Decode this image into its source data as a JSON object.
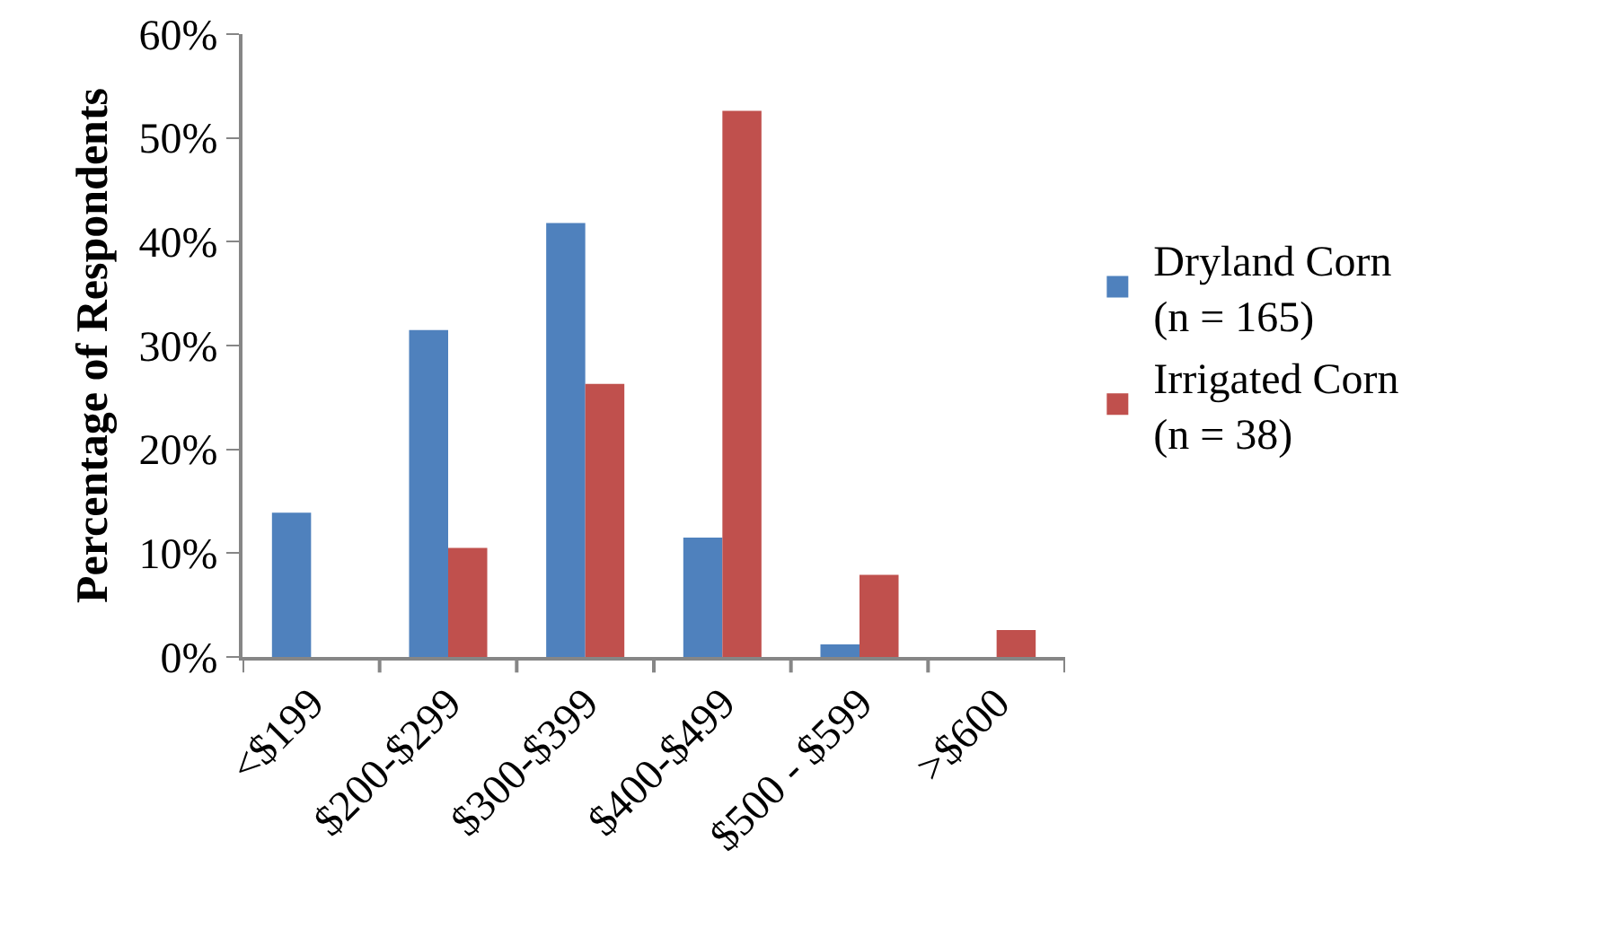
{
  "chart_data": {
    "type": "bar",
    "ylabel": "Percentage of Respondents",
    "categories": [
      "<$199",
      "$200-$299",
      "$300-$399",
      "$400-$499",
      "$500 - $599",
      ">$600"
    ],
    "series": [
      {
        "name": "Dryland Corn\n(n = 165)",
        "color": "#4f81bd",
        "values": [
          13.9,
          31.5,
          41.8,
          11.5,
          1.2,
          0
        ]
      },
      {
        "name": "Irrigated Corn\n(n = 38)",
        "color": "#c0504d",
        "values": [
          0,
          10.5,
          26.3,
          52.6,
          7.9,
          2.6
        ]
      }
    ],
    "ylim": [
      0,
      60
    ],
    "yticks": [
      {
        "value": 0,
        "label": "0%"
      },
      {
        "value": 10,
        "label": "10%"
      },
      {
        "value": 20,
        "label": "20%"
      },
      {
        "value": 30,
        "label": "30%"
      },
      {
        "value": 40,
        "label": "40%"
      },
      {
        "value": 50,
        "label": "50%"
      },
      {
        "value": 60,
        "label": "60%"
      }
    ],
    "grid": false,
    "legend": "right"
  }
}
